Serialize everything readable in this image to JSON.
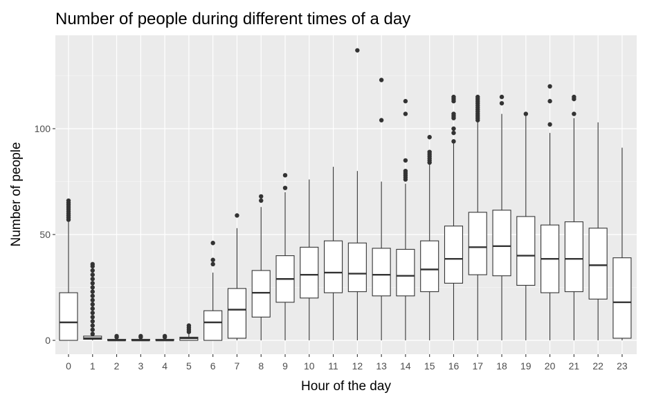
{
  "chart_data": {
    "type": "boxplot",
    "title": "Number of people during different times of a day",
    "xlabel": "Hour of the day",
    "ylabel": "Number of people",
    "ylim": [
      -6,
      138
    ],
    "y_ticks": [
      0,
      50,
      100
    ],
    "y_minor_ticks": [
      25,
      75,
      125
    ],
    "grid": true,
    "categories": [
      "0",
      "1",
      "2",
      "3",
      "4",
      "5",
      "6",
      "7",
      "8",
      "9",
      "10",
      "11",
      "12",
      "13",
      "14",
      "15",
      "16",
      "17",
      "18",
      "19",
      "20",
      "21",
      "22",
      "23"
    ],
    "boxes": [
      {
        "x": "0",
        "min": 0,
        "q1": 0,
        "median": 8.5,
        "q3": 22.5,
        "max": 56,
        "outliers": [
          57,
          58,
          59,
          60,
          61,
          62,
          63,
          64,
          65,
          66
        ]
      },
      {
        "x": "1",
        "min": 0,
        "q1": 0.5,
        "median": 1,
        "q3": 2,
        "max": 2.5,
        "outliers": [
          3,
          5,
          7,
          9,
          11,
          13,
          15,
          17,
          19,
          21,
          23,
          25,
          27,
          29,
          31,
          33,
          35,
          36
        ]
      },
      {
        "x": "2",
        "min": 0,
        "q1": 0,
        "median": 0,
        "q3": 0.5,
        "max": 1,
        "outliers": [
          1.5,
          2
        ]
      },
      {
        "x": "3",
        "min": 0,
        "q1": 0,
        "median": 0,
        "q3": 0.5,
        "max": 1,
        "outliers": [
          1.5,
          2
        ]
      },
      {
        "x": "4",
        "min": 0,
        "q1": 0,
        "median": 0,
        "q3": 0.5,
        "max": 1,
        "outliers": [
          1.5,
          2
        ]
      },
      {
        "x": "5",
        "min": 0,
        "q1": 0,
        "median": 1,
        "q3": 1.5,
        "max": 3,
        "outliers": [
          4,
          5,
          6,
          7
        ]
      },
      {
        "x": "6",
        "min": 0,
        "q1": 0,
        "median": 8.5,
        "q3": 14,
        "max": 32,
        "outliers": [
          36,
          38,
          46
        ]
      },
      {
        "x": "7",
        "min": 0,
        "q1": 1,
        "median": 14.5,
        "q3": 24.5,
        "max": 53,
        "outliers": [
          59
        ]
      },
      {
        "x": "8",
        "min": 0,
        "q1": 11,
        "median": 22.5,
        "q3": 33,
        "max": 63,
        "outliers": [
          66,
          68
        ]
      },
      {
        "x": "9",
        "min": 0,
        "q1": 18,
        "median": 29,
        "q3": 40,
        "max": 70,
        "outliers": [
          72,
          78
        ]
      },
      {
        "x": "10",
        "min": 0,
        "q1": 20,
        "median": 31,
        "q3": 44,
        "max": 76,
        "outliers": []
      },
      {
        "x": "11",
        "min": 0,
        "q1": 22.5,
        "median": 32,
        "q3": 47,
        "max": 82,
        "outliers": []
      },
      {
        "x": "12",
        "min": 0,
        "q1": 23,
        "median": 31.5,
        "q3": 46,
        "max": 80,
        "outliers": [
          137
        ]
      },
      {
        "x": "13",
        "min": 0,
        "q1": 21,
        "median": 31,
        "q3": 43.5,
        "max": 75,
        "outliers": [
          104,
          123
        ]
      },
      {
        "x": "14",
        "min": 0,
        "q1": 21,
        "median": 30.5,
        "q3": 43,
        "max": 74,
        "outliers": [
          76,
          77,
          78,
          79,
          80,
          85,
          107,
          113
        ]
      },
      {
        "x": "15",
        "min": 0,
        "q1": 23,
        "median": 33.5,
        "q3": 47,
        "max": 83,
        "outliers": [
          84,
          85,
          86,
          87,
          88,
          89,
          96
        ]
      },
      {
        "x": "16",
        "min": 0,
        "q1": 27,
        "median": 38.5,
        "q3": 54,
        "max": 93,
        "outliers": [
          94,
          98,
          100,
          105,
          106,
          107,
          113,
          114,
          115
        ]
      },
      {
        "x": "17",
        "min": 0,
        "q1": 31,
        "median": 44,
        "q3": 60.5,
        "max": 103,
        "outliers": [
          104,
          105,
          106,
          107,
          108,
          109,
          110,
          111,
          112,
          113,
          114,
          115
        ]
      },
      {
        "x": "18",
        "min": 0,
        "q1": 30.5,
        "median": 44.5,
        "q3": 61.5,
        "max": 107,
        "outliers": [
          112,
          115
        ]
      },
      {
        "x": "19",
        "min": 0,
        "q1": 26,
        "median": 40,
        "q3": 58.5,
        "max": 106,
        "outliers": [
          107
        ]
      },
      {
        "x": "20",
        "min": 0,
        "q1": 22.5,
        "median": 38.5,
        "q3": 54.5,
        "max": 98,
        "outliers": [
          102,
          113,
          120
        ]
      },
      {
        "x": "21",
        "min": 0,
        "q1": 23,
        "median": 38.5,
        "q3": 56,
        "max": 105,
        "outliers": [
          107,
          114,
          115
        ]
      },
      {
        "x": "22",
        "min": 0,
        "q1": 19.5,
        "median": 35.5,
        "q3": 53,
        "max": 103,
        "outliers": []
      },
      {
        "x": "23",
        "min": 0,
        "q1": 1,
        "median": 18,
        "q3": 39,
        "max": 91,
        "outliers": []
      }
    ],
    "colors": {
      "panel_background": "#ebebeb",
      "grid": "#ffffff",
      "box_fill": "#ffffff",
      "box_stroke": "#333333",
      "outlier": "#333333",
      "tick_label": "#4d4d4d",
      "text": "#000000"
    }
  }
}
